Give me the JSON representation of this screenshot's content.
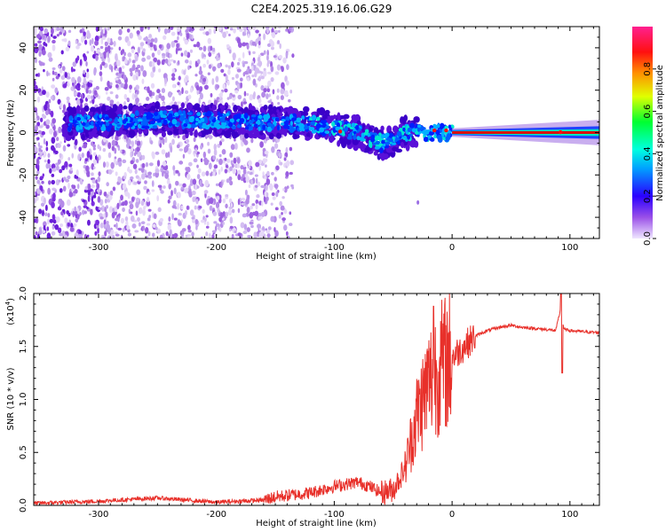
{
  "figure": {
    "title": "C2E4.2025.319.16.06.G29"
  },
  "chart_data": [
    {
      "type": "heatmap",
      "name": "spectrogram",
      "xlabel": "Height of straight line (km)",
      "ylabel": "Frequency (Hz)",
      "xlim": [
        -355,
        125
      ],
      "ylim": [
        -50,
        50
      ],
      "xticks": [
        -300,
        -200,
        -100,
        0,
        100
      ],
      "yticks": [
        -40,
        -20,
        0,
        20,
        40
      ],
      "ridge": {
        "description_points_x": [
          -330,
          -300,
          -250,
          -200,
          -160,
          -120,
          -100,
          -80,
          -60,
          -50,
          -40,
          -30,
          -20,
          -10,
          0,
          10,
          50,
          100,
          125
        ],
        "center_freq_y": [
          4,
          5,
          6,
          6,
          5,
          4,
          2,
          0,
          -5,
          -4,
          0,
          0,
          0,
          0,
          0,
          0,
          0,
          0,
          0
        ]
      },
      "colorbar": {
        "label": "Normalized spectral amplitude",
        "range": [
          0.0,
          1.0
        ],
        "ticks": [
          "0.0",
          "0.2",
          "0.4",
          "0.6",
          "0.8"
        ],
        "colors": [
          "#d8c8f0",
          "#8a2be2",
          "#0000ff",
          "#00ffff",
          "#00ff00",
          "#ffff00",
          "#ff8000",
          "#ff0000",
          "#ff2080"
        ]
      }
    },
    {
      "type": "line",
      "name": "snr",
      "xlabel": "Height of straight line (km)",
      "ylabel": "SNR (10 * v/v)",
      "scale_label": "(x10",
      "scale_exp": "4",
      "scale_close": ")",
      "xlim": [
        -355,
        125
      ],
      "ylim": [
        0.0,
        2.0
      ],
      "xticks": [
        -300,
        -200,
        -100,
        0,
        100
      ],
      "yticks": [
        "0.0",
        "0.5",
        "1.0",
        "1.5",
        "2.0"
      ],
      "line_color": "#e8302a",
      "x": [
        -355,
        -300,
        -250,
        -200,
        -160,
        -150,
        -120,
        -100,
        -90,
        -80,
        -70,
        -60,
        -50,
        -40,
        -35,
        -30,
        -25,
        -20,
        -15,
        -10,
        -5,
        0,
        10,
        20,
        30,
        40,
        50,
        60,
        70,
        80,
        88,
        92,
        95,
        100,
        110,
        125
      ],
      "y": [
        0.02,
        0.04,
        0.07,
        0.03,
        0.05,
        0.08,
        0.12,
        0.18,
        0.2,
        0.22,
        0.18,
        0.12,
        0.15,
        0.35,
        0.6,
        0.85,
        1.0,
        1.15,
        1.25,
        1.3,
        1.35,
        1.4,
        1.5,
        1.6,
        1.65,
        1.68,
        1.7,
        1.68,
        1.67,
        1.66,
        1.65,
        1.85,
        1.66,
        1.65,
        1.64,
        1.63
      ]
    }
  ]
}
